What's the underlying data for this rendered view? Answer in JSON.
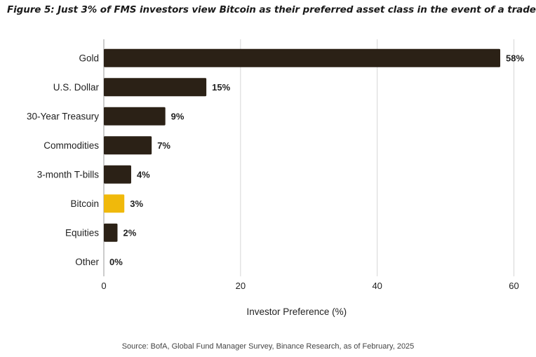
{
  "figure": {
    "title": "Figure 5: Just 3% of FMS investors view Bitcoin as their preferred asset class in the event of a trade war",
    "source": "Source: BofA, Global Fund Manager Survey, Binance Research, as of February, 2025"
  },
  "chart_data": {
    "type": "bar",
    "orientation": "horizontal",
    "categories": [
      "Gold",
      "U.S. Dollar",
      "30-Year Treasury",
      "Commodities",
      "3-month T-bills",
      "Bitcoin",
      "Equities",
      "Other"
    ],
    "values": [
      58,
      15,
      9,
      7,
      4,
      3,
      2,
      0
    ],
    "value_labels": [
      "58%",
      "15%",
      "9%",
      "7%",
      "4%",
      "3%",
      "2%",
      "0%"
    ],
    "xlabel": "Investor Preference (%)",
    "ylabel": "",
    "xlim": [
      0,
      62
    ],
    "xticks": [
      0,
      20,
      40,
      60
    ],
    "grid": "vertical",
    "bar_color": "#2b2116",
    "highlight_category": "Bitcoin",
    "highlight_color": "#f0b90b"
  }
}
